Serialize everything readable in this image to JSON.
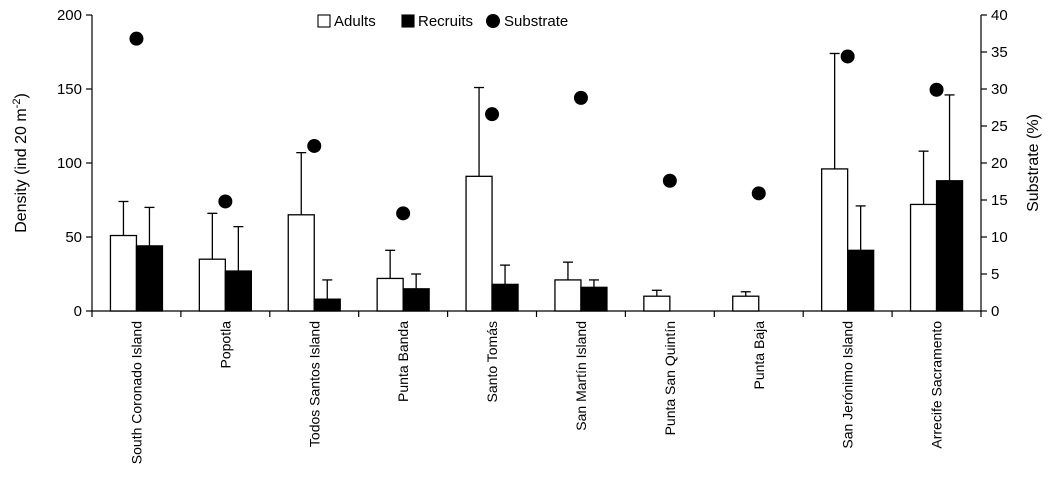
{
  "chart_data": {
    "type": "bar",
    "categories": [
      "South Coronado Island",
      "Popotla",
      "Todos Santos Island",
      "Punta Banda",
      "Santo Tomás",
      "San Martín Island",
      "Punta San Quintín",
      "Punta Baja",
      "San Jerónimo Island",
      "Arrecife Sacramento"
    ],
    "series": [
      {
        "name": "Adults",
        "axis": "left",
        "fill": "#ffffff",
        "values": [
          51,
          35,
          65,
          22,
          91,
          21,
          10,
          10,
          96,
          72
        ],
        "error": [
          23,
          31,
          42,
          19,
          60,
          12,
          4,
          3,
          78,
          36
        ]
      },
      {
        "name": "Recruits",
        "axis": "left",
        "fill": "#000000",
        "values": [
          44,
          27,
          8,
          15,
          18,
          16,
          0,
          0,
          41,
          88
        ],
        "error": [
          26,
          30,
          13,
          10,
          13,
          5,
          0,
          0,
          30,
          58
        ]
      },
      {
        "name": "Substrate",
        "axis": "right",
        "marker": "circle",
        "color": "#000000",
        "values": [
          36.8,
          14.8,
          22.3,
          13.2,
          26.6,
          28.8,
          17.6,
          15.9,
          34.4,
          29.9
        ]
      }
    ],
    "ylabel_left": "Density (ind 20 m",
    "ylabel_left_sup": "-2",
    "ylabel_left_close": ")",
    "ylabel_right": "Substrate (%)",
    "ylim_left": [
      0,
      200
    ],
    "yticks_left": [
      0,
      50,
      100,
      150,
      200
    ],
    "ylim_right": [
      0,
      40
    ],
    "yticks_right": [
      0,
      5,
      10,
      15,
      20,
      25,
      30,
      35,
      40
    ],
    "grid": false,
    "legend_position": "top-center"
  }
}
